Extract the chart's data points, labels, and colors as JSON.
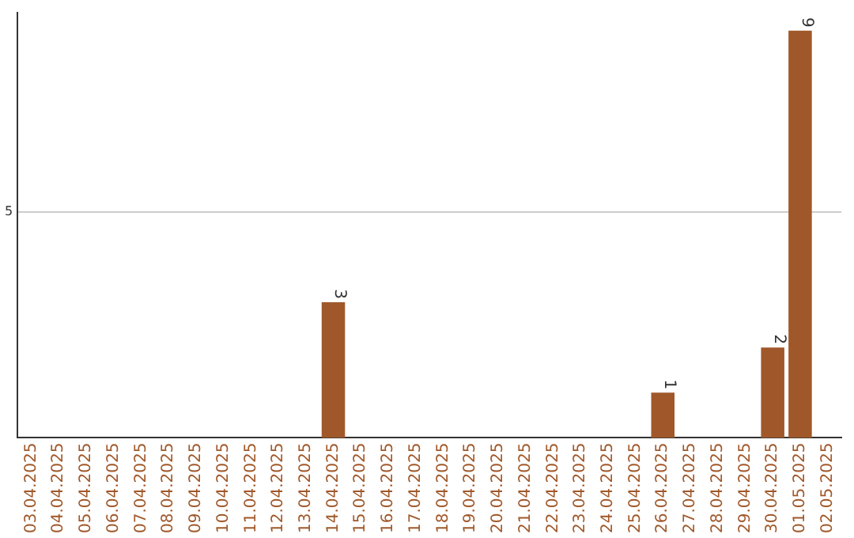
{
  "chart_data": {
    "type": "bar",
    "categories": [
      "03.04.2025",
      "04.04.2025",
      "05.04.2025",
      "06.04.2025",
      "07.04.2025",
      "08.04.2025",
      "09.04.2025",
      "10.04.2025",
      "11.04.2025",
      "12.04.2025",
      "13.04.2025",
      "14.04.2025",
      "15.04.2025",
      "16.04.2025",
      "17.04.2025",
      "18.04.2025",
      "19.04.2025",
      "20.04.2025",
      "21.04.2025",
      "22.04.2025",
      "23.04.2025",
      "24.04.2025",
      "25.04.2025",
      "26.04.2025",
      "27.04.2025",
      "28.04.2025",
      "29.04.2025",
      "30.04.2025",
      "01.05.2025",
      "02.05.2025"
    ],
    "values": [
      0,
      0,
      0,
      0,
      0,
      0,
      0,
      0,
      0,
      0,
      0,
      3,
      0,
      0,
      0,
      0,
      0,
      0,
      0,
      0,
      0,
      0,
      0,
      1,
      0,
      0,
      0,
      2,
      9,
      0
    ],
    "value_labels": [
      null,
      null,
      null,
      null,
      null,
      null,
      null,
      null,
      null,
      null,
      null,
      "3",
      null,
      null,
      null,
      null,
      null,
      null,
      null,
      null,
      null,
      null,
      null,
      "1",
      null,
      null,
      null,
      "2",
      "9",
      null
    ],
    "color": "#a0582a",
    "ylim": [
      0,
      9.4
    ],
    "yticks": [
      5
    ],
    "grid": "y",
    "legend": false
  }
}
